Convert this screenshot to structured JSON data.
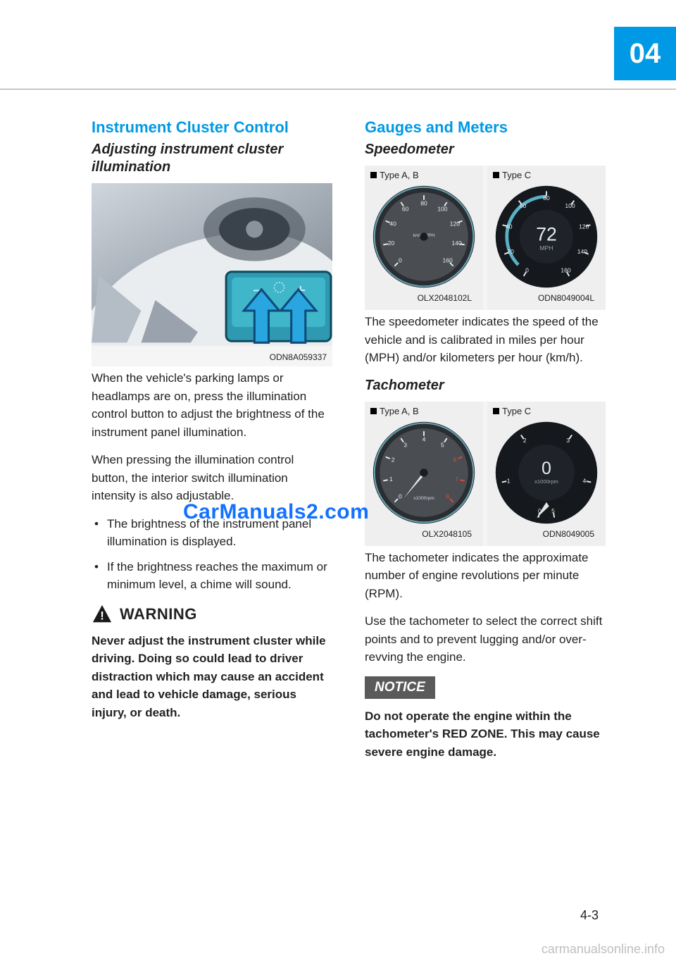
{
  "chapter": "04",
  "page_number": "4-3",
  "footer": "carmanualsonline.info",
  "watermark": "CarManuals2.com",
  "left": {
    "heading": "Instrument Cluster Control",
    "subheading": "Adjusting instrument cluster illumination",
    "figure_code": "ODN8A059337",
    "p1": "When the vehicle's parking lamps or headlamps are on, press the illumination control button to adjust the brightness of the instrument panel illumination.",
    "p2": "When pressing the illumination control button, the interior switch illumination intensity is also adjustable.",
    "bullets": [
      "The brightness of the instrument panel illumination is displayed.",
      "If the brightness reaches the maximum or minimum level, a chime will sound."
    ],
    "warning_title": "WARNING",
    "warning_text": "Never adjust the instrument cluster while driving. Doing so could lead to driver distraction which may cause an accident and lead to vehicle damage, serious injury, or death."
  },
  "right": {
    "heading": "Gauges and Meters",
    "speedo": {
      "title": "Speedometer",
      "type_ab": "Type A, B",
      "type_c": "Type C",
      "code_left": "OLX2048102L",
      "code_right": "ODN8049004L",
      "gauge_ab": {
        "face": "#4a4e52",
        "ring": "#2d3236",
        "rim": "#6aa8b6",
        "ticks": [
          "0",
          "20",
          "40",
          "60",
          "80",
          "100",
          "120",
          "140",
          "160"
        ],
        "inner_label": "km/h  MPH",
        "sub_ticks": [
          "100",
          "120",
          "160"
        ]
      },
      "gauge_c": {
        "bg": "#15181c",
        "arc": "#5bb0c8",
        "text_color": "#e6edf0",
        "value": "72",
        "unit": "MPH",
        "ticks": [
          "0",
          "20",
          "40",
          "60",
          "80",
          "100",
          "120",
          "140",
          "160"
        ]
      },
      "desc": "The speedometer indicates the speed of the vehicle and is calibrated in miles per hour (MPH) and/or kilometers per hour (km/h)."
    },
    "tach": {
      "title": "Tachometer",
      "type_ab": "Type A, B",
      "type_c": "Type C",
      "code_left": "OLX2048105",
      "code_right": "ODN8049005",
      "gauge_ab": {
        "face": "#4a4e52",
        "ring": "#2d3236",
        "rim": "#6aa8b6",
        "ticks": [
          "0",
          "1",
          "2",
          "3",
          "4",
          "5",
          "6",
          "7",
          "8"
        ],
        "label": "x1000rpm",
        "red_start": 6
      },
      "gauge_c": {
        "bg": "#15181c",
        "text_color": "#e6edf0",
        "value": "0",
        "unit": "x1000rpm",
        "ticks": [
          "0",
          "1",
          "2",
          "3",
          "4",
          "5"
        ]
      },
      "p1": "The tachometer indicates the approximate number of engine revolutions per minute (RPM).",
      "p2": "Use the tachometer to select the correct shift points and to prevent lugging and/or over-revving the engine."
    },
    "notice_label": "NOTICE",
    "notice_text": "Do not operate the engine within the tachometer's RED ZONE. This may cause severe engine damage."
  }
}
